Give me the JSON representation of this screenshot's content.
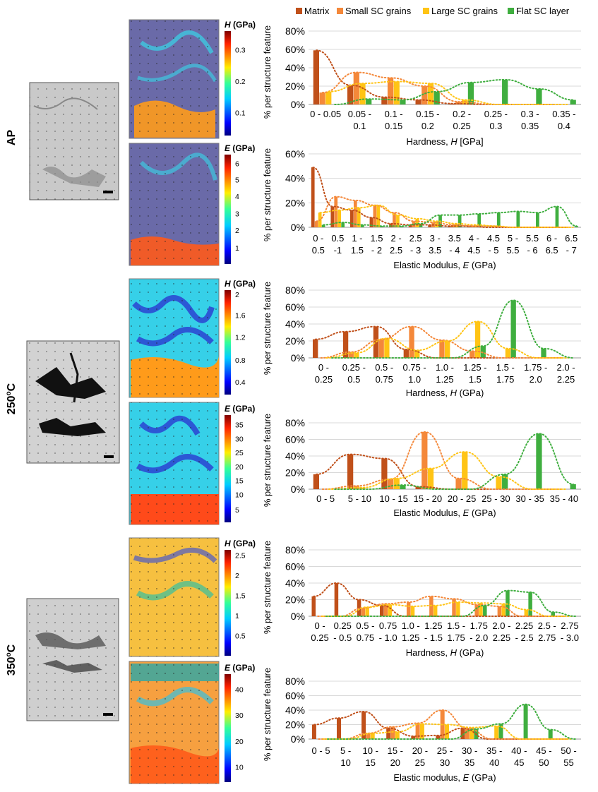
{
  "legend": {
    "items": [
      {
        "label": "Matrix",
        "color": "#c0501a"
      },
      {
        "label": "Small SC grains",
        "color": "#f4883a"
      },
      {
        "label": "Large SC grains",
        "color": "#ffc415"
      },
      {
        "label": "Flat SC layer",
        "color": "#3fae3f"
      }
    ]
  },
  "rows": [
    {
      "label": "AP",
      "superscript": ""
    },
    {
      "label": "250",
      "superscript": "o",
      "suffix": "C"
    },
    {
      "label": "350",
      "superscript": "o",
      "suffix": "C"
    }
  ],
  "maps": [
    {
      "symbol": "H",
      "unit": " (GPa)",
      "ticks": [
        "0.3",
        "0.2",
        "0.1"
      ],
      "tickFrac": [
        0.82,
        0.52,
        0.22
      ]
    },
    {
      "symbol": "E",
      "unit": " (GPa)",
      "ticks": [
        "6",
        "5",
        "4",
        "3",
        "2",
        "1"
      ],
      "tickFrac": [
        0.92,
        0.77,
        0.62,
        0.46,
        0.31,
        0.15
      ]
    },
    {
      "symbol": "H",
      "unit": " (GPa)",
      "ticks": [
        "2",
        "1.6",
        "1.2",
        "0.8",
        "0.4"
      ],
      "tickFrac": [
        0.96,
        0.76,
        0.55,
        0.33,
        0.12
      ]
    },
    {
      "symbol": "E",
      "unit": " (GPa)",
      "ticks": [
        "35",
        "30",
        "25",
        "20",
        "15",
        "10",
        "5"
      ],
      "tickFrac": [
        0.91,
        0.78,
        0.65,
        0.52,
        0.39,
        0.26,
        0.12
      ]
    },
    {
      "symbol": "H",
      "unit": " (GPa)",
      "ticks": [
        "2.5",
        "2",
        "1.5",
        "1",
        "0.5"
      ],
      "tickFrac": [
        0.95,
        0.76,
        0.57,
        0.38,
        0.19
      ]
    },
    {
      "symbol": "E",
      "unit": " (GPa)",
      "ticks": [
        "40",
        "30",
        "20",
        "10"
      ],
      "tickFrac": [
        0.86,
        0.62,
        0.38,
        0.14
      ]
    }
  ],
  "chart_data": [
    {
      "type": "bar",
      "ylabel": "% per structure feature",
      "xlabel": "Hardness, ",
      "xlabel_symbol": "H",
      "xlabel_unit": " [GPa]",
      "yticks": [
        "0%",
        "20%",
        "40%",
        "60%",
        "80%"
      ],
      "ylim": [
        0,
        80
      ],
      "categories": [
        "0 - 0.05",
        "0.05 - 0.1",
        "0.1 - 0.15",
        "0.15 - 0.2",
        "0.2 - 0.25",
        "0.25 - 0.3",
        "0.3 - 0.35",
        "0.35 - 0.4"
      ],
      "cat_lines": [
        [
          "0 - 0.05",
          ""
        ],
        [
          "0.05 -",
          "0.1"
        ],
        [
          "0.1 -",
          "0.15"
        ],
        [
          "0.15 -",
          "0.2"
        ],
        [
          "0.2 -",
          "0.25"
        ],
        [
          "0.25 -",
          "0.3"
        ],
        [
          "0.3 -",
          "0.35"
        ],
        [
          "0.35 -",
          "0.4"
        ]
      ],
      "series": [
        {
          "name": "Matrix",
          "values": [
            59,
            21,
            8,
            5,
            1,
            0,
            0,
            0
          ]
        },
        {
          "name": "Small SC grains",
          "values": [
            13,
            35,
            29,
            20,
            3,
            0,
            0,
            0
          ]
        },
        {
          "name": "Large SC grains",
          "values": [
            14,
            23,
            25,
            23,
            5,
            0,
            0,
            0
          ]
        },
        {
          "name": "Flat SC layer",
          "values": [
            0,
            6,
            5,
            14,
            24,
            27,
            17,
            5
          ]
        }
      ]
    },
    {
      "type": "bar",
      "ylabel": "% per structure feature",
      "xlabel": "Elastic Modulus, ",
      "xlabel_symbol": "E",
      "xlabel_unit": " (GPa)",
      "yticks": [
        "0%",
        "20%",
        "40%",
        "60%"
      ],
      "ylim": [
        0,
        60
      ],
      "categories": [
        "0 - 0.5",
        "0.5 - 1",
        "1 - 1.5",
        "1.5 - 2",
        "2 - 2.5",
        "2.5 - 3",
        "3 - 3.5",
        "3.5 - 4",
        "4 - 4.5",
        "4.5 - 5",
        "5 - 5.5",
        "5.5 - 6",
        "6 - 6.5",
        "6.5 - 7"
      ],
      "cat_lines": [
        [
          "0 -",
          "0.5"
        ],
        [
          "0.5",
          "-1"
        ],
        [
          "1 -",
          "1.5"
        ],
        [
          "1.5",
          "- 2"
        ],
        [
          "2 -",
          "2.5"
        ],
        [
          "2.5",
          "- 3"
        ],
        [
          "3 -",
          "3.5"
        ],
        [
          "3.5",
          "- 4"
        ],
        [
          "4 -",
          "4.5"
        ],
        [
          "4.5",
          "- 5"
        ],
        [
          "5 -",
          "5.5"
        ],
        [
          "5.5",
          "- 6"
        ],
        [
          "6 -",
          "6.5"
        ],
        [
          "6.5",
          "- 7"
        ]
      ],
      "series": [
        {
          "name": "Matrix",
          "values": [
            49,
            17,
            14,
            8,
            3,
            2,
            2,
            1,
            1,
            0,
            0,
            0,
            0,
            0
          ]
        },
        {
          "name": "Small SC grains",
          "values": [
            5,
            25,
            22,
            18,
            12,
            5,
            4,
            2,
            1,
            1,
            0,
            0,
            0,
            0
          ]
        },
        {
          "name": "Large SC grains",
          "values": [
            12,
            14,
            16,
            18,
            10,
            7,
            5,
            3,
            2,
            1,
            0,
            0,
            0,
            0
          ]
        },
        {
          "name": "Flat SC layer",
          "values": [
            2,
            4,
            2,
            1,
            1,
            3,
            10,
            10,
            11,
            12,
            13,
            12,
            17,
            1
          ]
        }
      ]
    },
    {
      "type": "bar",
      "ylabel": "% per structure feature",
      "xlabel": "Hardness, ",
      "xlabel_symbol": "H",
      "xlabel_unit": " (GPa)",
      "yticks": [
        "0%",
        "20%",
        "40%",
        "60%",
        "80%"
      ],
      "ylim": [
        0,
        80
      ],
      "categories": [
        "0 - 0.25",
        "0.25 - 0.5",
        "0.5 - 0.75",
        "0.75 - 1.0",
        "1.0 - 1.25",
        "1.25 - 1.5",
        "1.5 - 1.75",
        "1.75 - 2.0",
        "2.0 - 2.25"
      ],
      "cat_lines": [
        [
          "0 -",
          "0.25"
        ],
        [
          "0.25 -",
          "0.5"
        ],
        [
          "0.5 -",
          "0.75"
        ],
        [
          "0.75 -",
          "1.0"
        ],
        [
          "1.0 -",
          "1.25"
        ],
        [
          "1.25 -",
          "1.5"
        ],
        [
          "1.5 -",
          "1.75"
        ],
        [
          "1.75 -",
          "2.0"
        ],
        [
          "2.0 -",
          "2.25"
        ]
      ],
      "series": [
        {
          "name": "Matrix",
          "values": [
            22,
            31,
            37,
            10,
            0,
            0,
            0,
            0,
            0
          ]
        },
        {
          "name": "Small SC grains",
          "values": [
            0,
            7,
            22,
            37,
            21,
            8,
            0,
            0,
            0
          ]
        },
        {
          "name": "Large SC grains",
          "values": [
            0,
            6,
            23,
            9,
            20,
            43,
            11,
            0,
            0
          ]
        },
        {
          "name": "Flat SC layer",
          "values": [
            0,
            0,
            0,
            0,
            0,
            14,
            68,
            11,
            0
          ]
        }
      ]
    },
    {
      "type": "bar",
      "ylabel": "% per structure feature",
      "xlabel": "Elastic Modulus, ",
      "xlabel_symbol": "E",
      "xlabel_unit": " (GPa)",
      "yticks": [
        "0%",
        "20%",
        "40%",
        "60%",
        "80%"
      ],
      "ylim": [
        0,
        80
      ],
      "categories": [
        "0 - 5",
        "5 - 10",
        "10 - 15",
        "15 - 20",
        "20 - 25",
        "25 - 30",
        "30 - 35",
        "35 - 40"
      ],
      "cat_lines": [
        [
          "0 - 5",
          ""
        ],
        [
          "5 - 10",
          ""
        ],
        [
          "10 - 15",
          ""
        ],
        [
          "15 - 20",
          ""
        ],
        [
          "20 - 25",
          ""
        ],
        [
          "25 - 30",
          ""
        ],
        [
          "30 - 35",
          ""
        ],
        [
          "35 - 40",
          ""
        ]
      ],
      "series": [
        {
          "name": "Matrix",
          "values": [
            18,
            42,
            37,
            3,
            0,
            0,
            0,
            0
          ]
        },
        {
          "name": "Small SC grains",
          "values": [
            0,
            4,
            12,
            69,
            13,
            0,
            0,
            0
          ]
        },
        {
          "name": "Large SC grains",
          "values": [
            0,
            2,
            13,
            25,
            45,
            15,
            0,
            0
          ]
        },
        {
          "name": "Flat SC layer",
          "values": [
            0,
            0,
            5,
            0,
            0,
            18,
            67,
            6
          ]
        }
      ]
    },
    {
      "type": "bar",
      "ylabel": "% per structure feature",
      "xlabel": "Hardness, ",
      "xlabel_symbol": "H",
      "xlabel_unit": " (GPa)",
      "yticks": [
        "0%",
        "20%",
        "40%",
        "60%",
        "80%"
      ],
      "ylim": [
        0,
        80
      ],
      "categories": [
        "0 - 0.25",
        "0.25 - 0.5",
        "0.5 - 0.75",
        "0.75 - 1.0",
        "1.0 - 1.25",
        "1.25 - 1.5",
        "1.5 - 1.75",
        "1.75 - 2.0",
        "2.0 - 2.25",
        "2.25 - 2.5",
        "2.5 - 2.75",
        "2.75 - 3.0"
      ],
      "cat_lines": [
        [
          "0 -",
          "0.25"
        ],
        [
          "0.25",
          "- 0.5"
        ],
        [
          "0.5 -",
          "0.75"
        ],
        [
          "0.75",
          "- 1.0"
        ],
        [
          "1.0 -",
          "1.25"
        ],
        [
          "1.25",
          "- 1.5"
        ],
        [
          "1.5 -",
          "1.75"
        ],
        [
          "1.75",
          "- 2.0"
        ],
        [
          "2.0 -",
          "2.25"
        ],
        [
          "2.25",
          "- 2.5"
        ],
        [
          "2.5 -",
          "2.75"
        ],
        [
          "2.75",
          "- 3.0"
        ]
      ],
      "series": [
        {
          "name": "Matrix",
          "values": [
            24,
            40,
            20,
            13,
            0,
            0,
            0,
            0,
            0,
            0,
            0,
            0
          ]
        },
        {
          "name": "Small SC grains",
          "values": [
            0,
            0,
            10,
            15,
            17,
            24,
            21,
            14,
            12,
            0,
            0,
            0
          ]
        },
        {
          "name": "Large SC grains",
          "values": [
            0,
            0,
            11,
            14,
            12,
            13,
            17,
            16,
            15,
            8,
            0,
            0
          ]
        },
        {
          "name": "Flat SC layer",
          "values": [
            0,
            0,
            0,
            0,
            0,
            0,
            0,
            13,
            31,
            29,
            5,
            0
          ]
        }
      ]
    },
    {
      "type": "bar",
      "ylabel": "% per structure feature",
      "xlabel": "Elastic modulus, ",
      "xlabel_symbol": "E",
      "xlabel_unit": " (GPa)",
      "yticks": [
        "0%",
        "20%",
        "40%",
        "60%",
        "80%"
      ],
      "ylim": [
        0,
        80
      ],
      "categories": [
        "0 - 5",
        "5 - 10",
        "10 - 15",
        "15 - 20",
        "20 - 25",
        "25 - 30",
        "30 - 35",
        "35 - 40",
        "40 - 45",
        "45 - 50",
        "50 - 55"
      ],
      "cat_lines": [
        [
          "0 - 5",
          ""
        ],
        [
          "5 -",
          "10"
        ],
        [
          "10 -",
          "15"
        ],
        [
          "15 -",
          "20"
        ],
        [
          "20 -",
          "25"
        ],
        [
          "25 -",
          "30"
        ],
        [
          "30 -",
          "35"
        ],
        [
          "35 -",
          "40"
        ],
        [
          "40 -",
          "45"
        ],
        [
          "45 -",
          "50"
        ],
        [
          "50 -",
          "55"
        ]
      ],
      "series": [
        {
          "name": "Matrix",
          "values": [
            20,
            29,
            38,
            15,
            4,
            5,
            15,
            0,
            0,
            0,
            0
          ]
        },
        {
          "name": "Small SC grains",
          "values": [
            0,
            0,
            8,
            17,
            22,
            40,
            15,
            0,
            0,
            0,
            0
          ]
        },
        {
          "name": "Large SC grains",
          "values": [
            0,
            0,
            8,
            10,
            21,
            20,
            16,
            18,
            0,
            0,
            0
          ]
        },
        {
          "name": "Flat SC layer",
          "values": [
            0,
            0,
            0,
            0,
            0,
            0,
            14,
            21,
            48,
            13,
            0
          ]
        }
      ]
    }
  ]
}
